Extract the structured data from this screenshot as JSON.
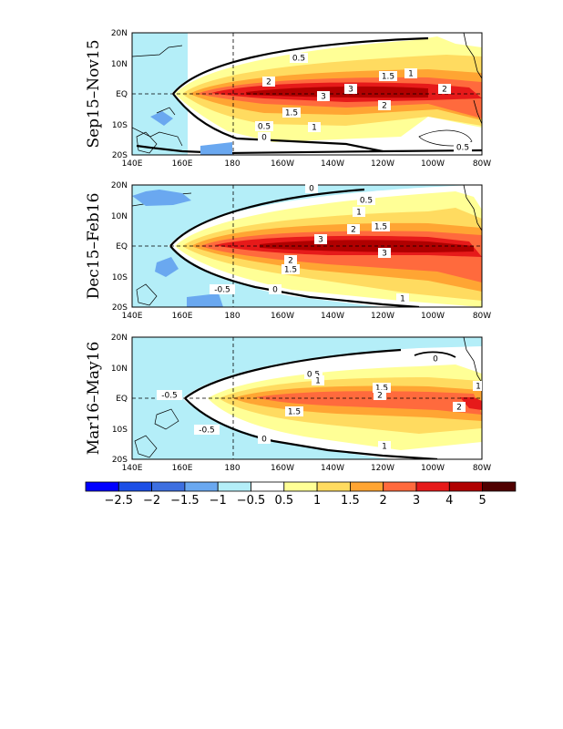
{
  "figure": {
    "panels": [
      {
        "period_label": "Sep15–Nov15"
      },
      {
        "period_label": "Dec15–Feb16"
      },
      {
        "period_label": "Mar16–May16"
      }
    ],
    "lon_ticks": [
      "140E",
      "160E",
      "180",
      "160W",
      "140W",
      "120W",
      "100W",
      "80W"
    ],
    "lat_ticks": [
      "20N",
      "10N",
      "EQ",
      "10S",
      "20S"
    ],
    "colorbar": {
      "levels": [
        "-2.5",
        "-2",
        "-1.5",
        "-1",
        "-0.5",
        "0.5",
        "1",
        "1.5",
        "2",
        "3",
        "4",
        "5"
      ],
      "colors": [
        "#0000ff",
        "#1c4fe6",
        "#3d6fe0",
        "#6aa8f0",
        "#b4eef8",
        "#ffffff",
        "#ffff96",
        "#ffdb60",
        "#ffa533",
        "#ff6a3d",
        "#e61a1a",
        "#b00000",
        "#500000"
      ]
    },
    "contour_labels": [
      [
        "0.5",
        "1",
        "1.5",
        "2",
        "3",
        "3",
        "2",
        "2",
        "1.5",
        "1",
        "0.5",
        "0",
        "0.5"
      ],
      [
        "0.5",
        "1",
        "1.5",
        "2",
        "3",
        "3",
        "2",
        "1.5",
        "1",
        "0",
        "-0.5",
        "0"
      ],
      [
        "0.5",
        "1",
        "1.5",
        "2",
        "2",
        "1.5",
        "1",
        "0",
        "-0.5",
        "-0.5",
        "0",
        "1"
      ]
    ]
  }
}
